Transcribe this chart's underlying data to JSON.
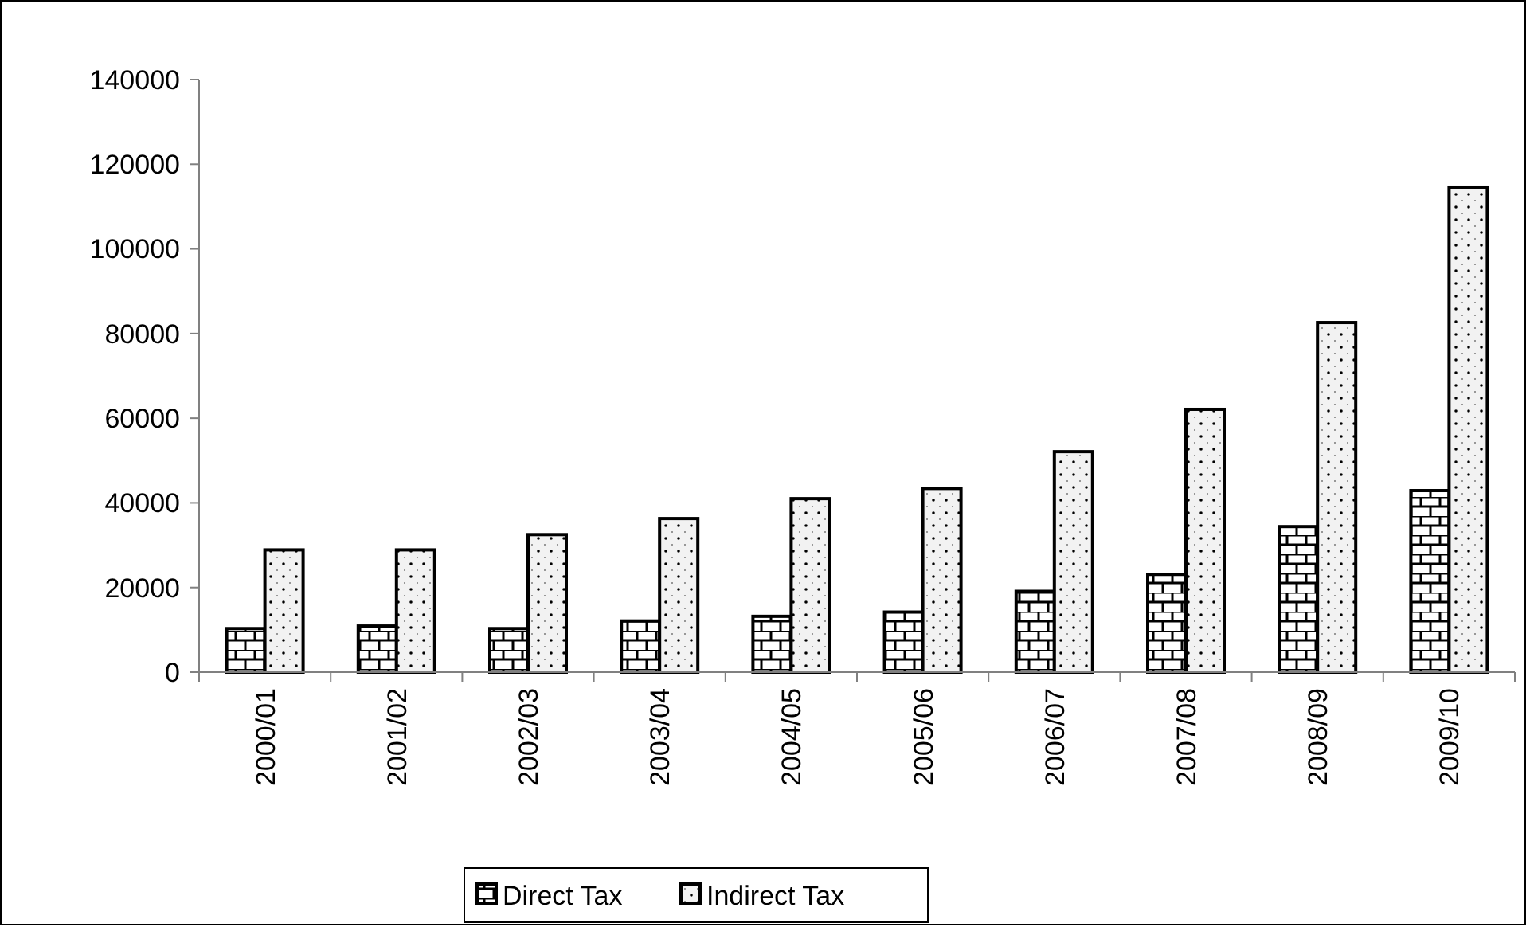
{
  "chart_data": {
    "type": "bar",
    "categories": [
      "2000/01",
      "2001/02",
      "2002/03",
      "2003/04",
      "2004/05",
      "2005/06",
      "2006/07",
      "2007/08",
      "2008/09",
      "2009/10"
    ],
    "series": [
      {
        "name": "Direct Tax",
        "color": "#000000",
        "values": [
          10300,
          10900,
          10300,
          12100,
          13200,
          14200,
          19100,
          23100,
          34400,
          42900
        ]
      },
      {
        "name": "Indirect Tax",
        "color": "#000000",
        "values": [
          28900,
          28900,
          32500,
          36300,
          41000,
          43400,
          52100,
          62100,
          82600,
          114600
        ]
      }
    ],
    "ylim": [
      0,
      140000
    ],
    "yticks": [
      0,
      20000,
      40000,
      60000,
      80000,
      100000,
      120000,
      140000
    ],
    "grid": false,
    "legend": "bottom"
  }
}
